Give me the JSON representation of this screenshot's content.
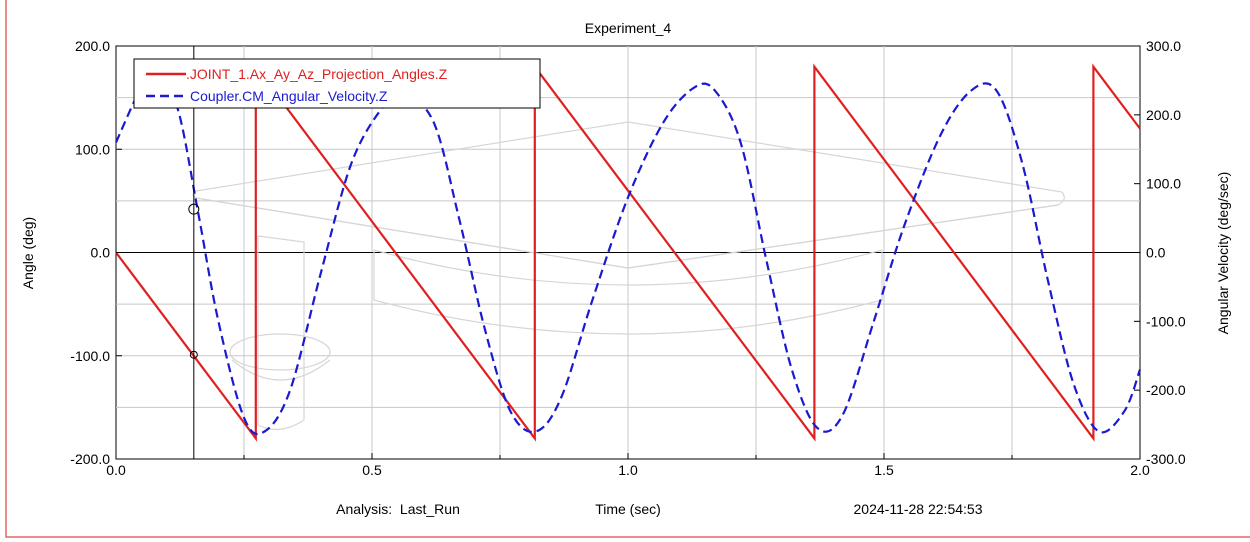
{
  "chart_data": {
    "type": "line",
    "title": "Experiment_4",
    "xlabel": "Time (sec)",
    "ylabel": "Angle (deg)",
    "y2label": "Angular Velocity (deg/sec)",
    "xlim": [
      0.0,
      2.0
    ],
    "ylim": [
      -200.0,
      200.0
    ],
    "y2lim": [
      -300.0,
      300.0
    ],
    "xticks": [
      "0.0",
      "0.5",
      "1.0",
      "1.5",
      "2.0"
    ],
    "yticks": [
      "200.0",
      "100.0",
      "0.0",
      "-100.0",
      "-200.0"
    ],
    "y2ticks": [
      "300.0",
      "200.0",
      "100.0",
      "0.0",
      "-100.0",
      "-200.0",
      "-300.0"
    ],
    "grid": true,
    "legend_position": "top-left",
    "footer": {
      "analysis": "Analysis:  Last_Run",
      "timestamp": "2024-11-28 22:54:53"
    },
    "cursor": {
      "x": 0.152,
      "y_angle": -99.0,
      "y_velocity": 63.0
    },
    "series": [
      {
        "name": ".JOINT_1.Ax_Ay_Az_Projection_Angles.Z",
        "color": "#e02020",
        "style": "solid",
        "axis": "left",
        "points": [
          [
            0.0,
            0.0
          ],
          [
            0.273,
            -180.0
          ],
          [
            0.273,
            180.0
          ],
          [
            0.818,
            -180.0
          ],
          [
            0.818,
            180.0
          ],
          [
            1.364,
            -180.0
          ],
          [
            1.364,
            180.0
          ],
          [
            1.909,
            -180.0
          ],
          [
            1.909,
            180.0
          ],
          [
            2.0,
            120.0
          ]
        ]
      },
      {
        "name": "Coupler.CM_Angular_Velocity.Z",
        "color": "#1a1ad0",
        "style": "dashed",
        "axis": "right",
        "points": [
          [
            0.0,
            160.0
          ],
          [
            0.05,
            240.0
          ],
          [
            0.08,
            252.0
          ],
          [
            0.12,
            210.0
          ],
          [
            0.16,
            60.0
          ],
          [
            0.2,
            -100.0
          ],
          [
            0.25,
            -240.0
          ],
          [
            0.29,
            -260.0
          ],
          [
            0.34,
            -200.0
          ],
          [
            0.4,
            -30.0
          ],
          [
            0.46,
            130.0
          ],
          [
            0.52,
            210.0
          ],
          [
            0.56,
            230.0
          ],
          [
            0.62,
            190.0
          ],
          [
            0.67,
            50.0
          ],
          [
            0.72,
            -110.0
          ],
          [
            0.77,
            -230.0
          ],
          [
            0.82,
            -260.0
          ],
          [
            0.87,
            -210.0
          ],
          [
            0.93,
            -70.0
          ],
          [
            1.0,
            80.0
          ],
          [
            1.07,
            190.0
          ],
          [
            1.13,
            240.0
          ],
          [
            1.17,
            235.0
          ],
          [
            1.22,
            160.0
          ],
          [
            1.27,
            -10.0
          ],
          [
            1.32,
            -170.0
          ],
          [
            1.37,
            -255.0
          ],
          [
            1.42,
            -235.0
          ],
          [
            1.48,
            -100.0
          ],
          [
            1.54,
            40.0
          ],
          [
            1.61,
            170.0
          ],
          [
            1.67,
            235.0
          ],
          [
            1.72,
            235.0
          ],
          [
            1.77,
            130.0
          ],
          [
            1.82,
            -40.0
          ],
          [
            1.87,
            -190.0
          ],
          [
            1.92,
            -260.0
          ],
          [
            1.97,
            -230.0
          ],
          [
            2.0,
            -170.0
          ]
        ]
      }
    ]
  }
}
